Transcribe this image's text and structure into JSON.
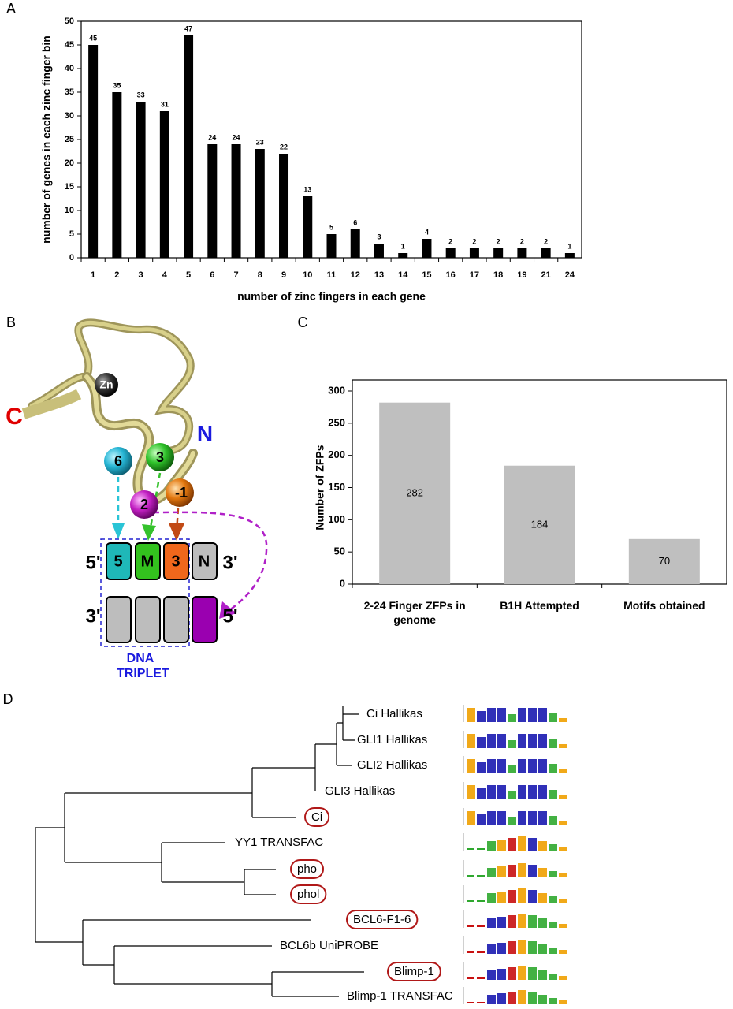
{
  "panel_labels": [
    "A",
    "B",
    "C",
    "D"
  ],
  "chart_data": [
    {
      "type": "bar",
      "xlabel": "number of zinc fingers in each gene",
      "ylabel": "number of genes in each zinc finger bin",
      "categories": [
        "1",
        "2",
        "3",
        "4",
        "5",
        "6",
        "7",
        "8",
        "9",
        "10",
        "11",
        "12",
        "13",
        "14",
        "15",
        "16",
        "17",
        "18",
        "19",
        "21",
        "24"
      ],
      "values": [
        45,
        35,
        33,
        31,
        47,
        24,
        24,
        23,
        22,
        13,
        5,
        6,
        3,
        1,
        4,
        2,
        2,
        2,
        2,
        2,
        1
      ],
      "color": "#000000",
      "ylim": [
        0,
        50
      ],
      "yticks": [
        0,
        5,
        10,
        15,
        20,
        25,
        30,
        35,
        40,
        45,
        50
      ],
      "grid": false,
      "value_labels_position": "above"
    },
    {
      "type": "bar",
      "ylabel": "Number of ZFPs",
      "categories": [
        "2-24 Finger ZFPs in genome",
        "B1H Attempted",
        "Motifs obtained"
      ],
      "values": [
        282,
        184,
        70
      ],
      "color": "#bfbfbf",
      "ylim": [
        0,
        300
      ],
      "yticks": [
        0,
        50,
        100,
        150,
        200,
        250,
        300
      ],
      "grid": false,
      "value_labels_position": "inside"
    }
  ],
  "structure": {
    "c_terminus": "C",
    "n_terminus": "N",
    "zinc": "Zn",
    "residues": [
      "6",
      "3",
      "2",
      "-1"
    ],
    "top_strand": {
      "left_end": "5'",
      "bases": [
        "5",
        "M",
        "3",
        "N"
      ],
      "right_end": "3'"
    },
    "bottom_strand": {
      "left_end": "3'",
      "right_end": "5'"
    },
    "triplet_label": "DNA TRIPLET"
  },
  "tree": {
    "leaves": [
      {
        "label": "Ci Hallikas",
        "highlighted": false
      },
      {
        "label": "GLI1 Hallikas",
        "highlighted": false
      },
      {
        "label": "GLI2 Hallikas",
        "highlighted": false
      },
      {
        "label": "GLI3 Hallikas",
        "highlighted": false
      },
      {
        "label": "Ci",
        "highlighted": true
      },
      {
        "label": "YY1 TRANSFAC",
        "highlighted": false
      },
      {
        "label": "pho",
        "highlighted": true
      },
      {
        "label": "phol",
        "highlighted": true
      },
      {
        "label": "BCL6-F1-6",
        "highlighted": true
      },
      {
        "label": "BCL6b UniPROBE",
        "highlighted": false
      },
      {
        "label": "Blimp-1",
        "highlighted": true
      },
      {
        "label": "Blimp-1 TRANSFAC",
        "highlighted": false
      }
    ]
  }
}
